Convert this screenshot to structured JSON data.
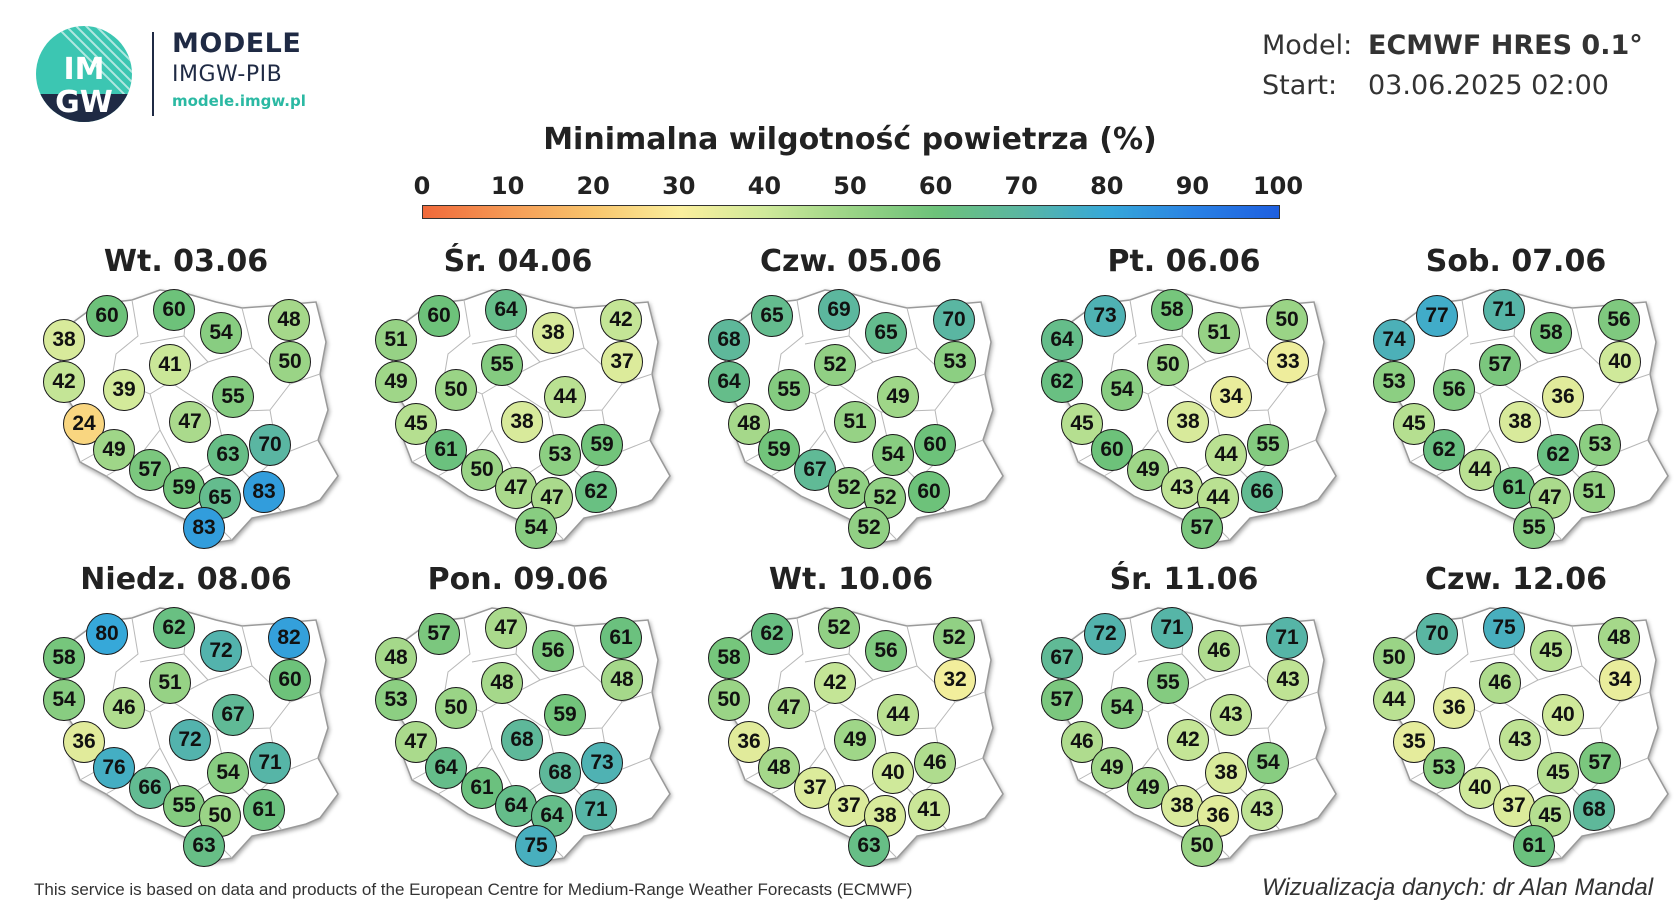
{
  "brand": {
    "logo_text_top": "IM",
    "logo_text_bottom": "GW",
    "title": "MODELE",
    "subtitle": "IMGW-PIB",
    "url": "modele.imgw.pl"
  },
  "meta": {
    "model_label": "Model:",
    "model_value": "ECMWF HRES 0.1°",
    "start_label": "Start:",
    "start_value": "03.06.2025 02:00"
  },
  "title": "Minimalna wilgotność powietrza (%)",
  "scale": {
    "ticks": [
      "0",
      "10",
      "20",
      "30",
      "40",
      "50",
      "60",
      "70",
      "80",
      "90",
      "100"
    ],
    "min": 0,
    "max": 100,
    "colors": [
      "#f0693a",
      "#f59a55",
      "#f8c56d",
      "#fbef9d",
      "#cfe99a",
      "#9ad486",
      "#6dc27a",
      "#5ab6a2",
      "#36a8d9",
      "#2a82e4",
      "#1e5fe0"
    ]
  },
  "days": [
    {
      "label": "Wt. 03.06",
      "values": [
        38,
        60,
        60,
        54,
        48,
        50,
        42,
        41,
        39,
        55,
        24,
        47,
        70,
        49,
        63,
        57,
        59,
        65,
        83,
        83
      ]
    },
    {
      "label": "Śr. 04.06",
      "values": [
        51,
        60,
        64,
        38,
        42,
        37,
        49,
        55,
        50,
        44,
        45,
        38,
        59,
        61,
        53,
        50,
        47,
        47,
        62,
        54
      ]
    },
    {
      "label": "Czw. 05.06",
      "values": [
        68,
        65,
        69,
        65,
        70,
        53,
        64,
        52,
        55,
        49,
        48,
        51,
        60,
        59,
        54,
        67,
        52,
        52,
        60,
        52
      ]
    },
    {
      "label": "Pt. 06.06",
      "values": [
        64,
        73,
        58,
        51,
        50,
        33,
        62,
        50,
        54,
        34,
        45,
        38,
        55,
        60,
        44,
        49,
        43,
        44,
        66,
        57
      ]
    },
    {
      "label": "Sob. 07.06",
      "values": [
        74,
        77,
        71,
        58,
        56,
        40,
        53,
        57,
        56,
        36,
        45,
        38,
        53,
        62,
        62,
        44,
        61,
        47,
        51,
        55
      ]
    },
    {
      "label": "Niedz. 08.06",
      "values": [
        58,
        80,
        62,
        72,
        82,
        60,
        54,
        51,
        46,
        67,
        36,
        72,
        71,
        76,
        54,
        66,
        55,
        50,
        61,
        63
      ]
    },
    {
      "label": "Pon. 09.06",
      "values": [
        48,
        57,
        47,
        56,
        61,
        48,
        53,
        48,
        50,
        59,
        47,
        68,
        73,
        64,
        68,
        61,
        64,
        64,
        71,
        75
      ]
    },
    {
      "label": "Wt. 10.06",
      "values": [
        58,
        62,
        52,
        56,
        52,
        32,
        50,
        42,
        47,
        44,
        36,
        49,
        46,
        48,
        40,
        37,
        37,
        38,
        41,
        63
      ]
    },
    {
      "label": "Śr. 11.06",
      "values": [
        67,
        72,
        71,
        46,
        71,
        43,
        57,
        55,
        54,
        43,
        46,
        42,
        54,
        49,
        38,
        49,
        38,
        36,
        43,
        50
      ]
    },
    {
      "label": "Czw. 12.06",
      "values": [
        50,
        70,
        75,
        45,
        48,
        34,
        44,
        46,
        36,
        40,
        35,
        43,
        57,
        53,
        45,
        40,
        37,
        45,
        68,
        61
      ]
    }
  ],
  "footer": {
    "source": "This service is based on data and products of the European Centre for Medium-Range Weather Forecasts (ECMWF)",
    "credit": "Wizualizacja danych: dr Alan Mandal"
  }
}
